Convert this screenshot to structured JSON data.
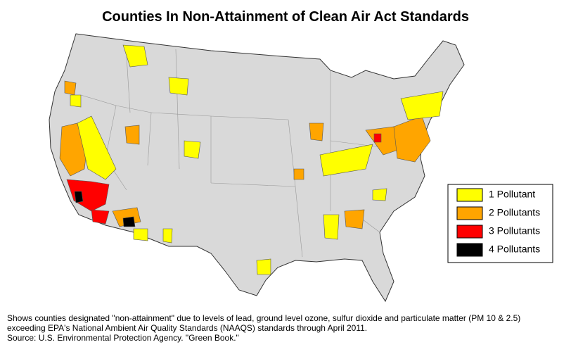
{
  "title": "Counties In Non-Attainment of Clean Air Act Standards",
  "legend": [
    {
      "label": "1 Pollutant",
      "color": "#ffff00"
    },
    {
      "label": "2 Pollutants",
      "color": "#ffa500"
    },
    {
      "label": "3 Pollutants",
      "color": "#ff0000"
    },
    {
      "label": "4 Pollutants",
      "color": "#000000"
    }
  ],
  "notes": [
    "Shows counties designated \"non-attainment\" due to levels of lead, ground level ozone, sulfur dioxide and particulate matter (PM 10 & 2.5)",
    "exceeding EPA's National Ambient Air Quality Standards (NAAQS) standards through April 2011.",
    "Source: U.S. Environmental Protection Agency. \"Green Book.\""
  ]
}
